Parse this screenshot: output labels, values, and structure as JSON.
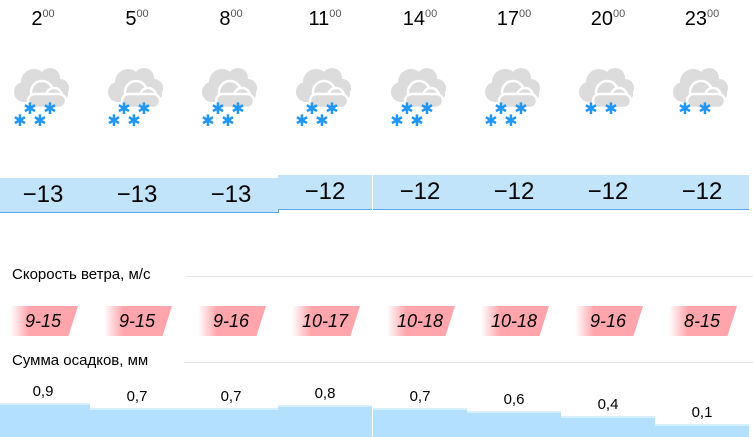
{
  "columns": [
    {
      "hour": "2",
      "minutes": "00",
      "icon": "cloudy-snow-icon",
      "flakes": 4,
      "temp": "−13",
      "wind": "9-15",
      "precip": "0,9"
    },
    {
      "hour": "5",
      "minutes": "00",
      "icon": "cloudy-snow-icon",
      "flakes": 4,
      "temp": "−13",
      "wind": "9-15",
      "precip": "0,7"
    },
    {
      "hour": "8",
      "minutes": "00",
      "icon": "cloudy-snow-icon",
      "flakes": 4,
      "temp": "−13",
      "wind": "9-16",
      "precip": "0,7"
    },
    {
      "hour": "11",
      "minutes": "00",
      "icon": "cloudy-snow-icon",
      "flakes": 4,
      "temp": "−12",
      "wind": "10-17",
      "precip": "0,8"
    },
    {
      "hour": "14",
      "minutes": "00",
      "icon": "cloudy-snow-icon",
      "flakes": 4,
      "temp": "−12",
      "wind": "10-18",
      "precip": "0,7"
    },
    {
      "hour": "17",
      "minutes": "00",
      "icon": "cloudy-snow-icon",
      "flakes": 4,
      "temp": "−12",
      "wind": "10-18",
      "precip": "0,6"
    },
    {
      "hour": "20",
      "minutes": "00",
      "icon": "cloudy-light-snow-icon",
      "flakes": 2,
      "temp": "−12",
      "wind": "9-16",
      "precip": "0,4"
    },
    {
      "hour": "23",
      "minutes": "00",
      "icon": "cloudy-light-snow-icon",
      "flakes": 2,
      "temp": "−12",
      "wind": "8-15",
      "precip": "0,1"
    }
  ],
  "wind_label": "Скорость ветра, м/с",
  "precip_label": "Сумма осадков, мм",
  "colors": {
    "temp_bg": "#c1e4fb",
    "wind_bg": "#ffa5ab",
    "water": "#b3e0fc",
    "snow": "#2196f3"
  }
}
